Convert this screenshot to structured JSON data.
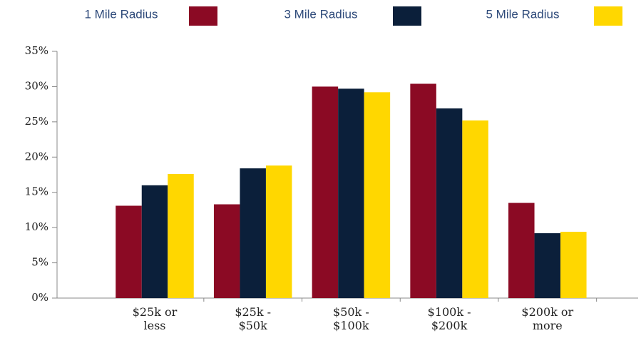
{
  "chart_data": {
    "type": "bar",
    "categories": [
      "$25k or less",
      "$25k - $50k",
      "$50k - $100k",
      "$100k - $200k",
      "$200k or more"
    ],
    "series": [
      {
        "name": "1 Mile Radius",
        "color": "#8b0a24",
        "values": [
          13.1,
          13.3,
          30.0,
          30.4,
          13.5
        ]
      },
      {
        "name": "3 Mile Radius",
        "color": "#0b1f3a",
        "values": [
          16.0,
          18.4,
          29.7,
          26.9,
          9.2
        ]
      },
      {
        "name": "5 Mile Radius",
        "color": "#ffd700",
        "values": [
          17.6,
          18.8,
          29.2,
          25.2,
          9.4
        ]
      }
    ],
    "ylim": [
      0,
      35
    ],
    "yticks": [
      {
        "value": 0,
        "label": "0%"
      },
      {
        "value": 5,
        "label": "5%"
      },
      {
        "value": 10,
        "label": "10%"
      },
      {
        "value": 15,
        "label": "15%"
      },
      {
        "value": 20,
        "label": "20%"
      },
      {
        "value": 25,
        "label": "25%"
      },
      {
        "value": 30,
        "label": "30%"
      },
      {
        "value": 35,
        "label": "35%"
      }
    ],
    "grid": false,
    "legend": "top"
  }
}
